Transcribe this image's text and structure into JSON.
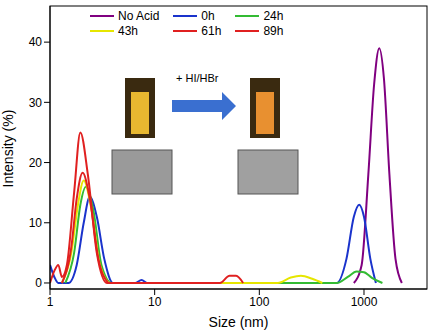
{
  "chart_data": {
    "type": "line",
    "x_label": "Size (nm)",
    "y_label": "Intensity (%)",
    "log": "x",
    "xlim": [
      1,
      4000
    ],
    "xticks": [
      1,
      10,
      100,
      1000
    ],
    "ylim": [
      -1,
      46
    ],
    "yticks": [
      0,
      10,
      20,
      30,
      40
    ],
    "legend": "top",
    "annotations": [
      "+ HI/HBr"
    ],
    "series": [
      {
        "name": "No Acid",
        "color": "#800080",
        "x": [
          800,
          950,
          1100,
          1250,
          1400,
          1550,
          1750,
          2000,
          2300
        ],
        "values": [
          0,
          3,
          18,
          33,
          39,
          34,
          18,
          4,
          0
        ]
      },
      {
        "name": "0h",
        "color": "#1a33cc",
        "x": [
          1,
          1.1,
          1.2,
          1.5,
          1.8,
          2.1,
          2.4,
          2.8,
          3.3,
          4,
          6.5,
          7.5,
          8.5,
          550,
          680,
          800,
          900,
          1000,
          1150,
          1300
        ],
        "values": [
          3,
          1,
          0,
          0,
          3,
          10,
          14.3,
          11,
          4,
          0,
          0,
          0.5,
          0,
          0,
          4,
          11,
          13,
          11,
          4,
          0
        ]
      },
      {
        "name": "24h",
        "color": "#33bb33",
        "x": [
          1.4,
          1.7,
          1.95,
          2.2,
          2.6,
          3.1,
          3.9,
          550,
          700,
          850,
          1000,
          1200,
          1500
        ],
        "values": [
          0,
          5,
          13,
          16,
          12,
          3,
          0,
          0,
          1,
          1.9,
          1.8,
          0.8,
          0
        ]
      },
      {
        "name": "43h",
        "color": "#e6e600",
        "x": [
          1.3,
          1.6,
          1.85,
          2.1,
          2.5,
          3,
          3.8,
          150,
          200,
          250,
          320,
          400
        ],
        "values": [
          0,
          5,
          13,
          17,
          12,
          3,
          0,
          0,
          0.9,
          1.2,
          0.7,
          0
        ]
      },
      {
        "name": "61h",
        "color": "#e02020",
        "x": [
          1.3,
          1.6,
          1.8,
          2.05,
          2.4,
          2.9,
          3.6
        ],
        "values": [
          0,
          6,
          14,
          18.3,
          14,
          4,
          0
        ]
      },
      {
        "name": "89h",
        "color": "#e02020",
        "x": [
          1,
          1.1,
          1.2,
          1.3,
          1.45,
          1.7,
          1.95,
          2.3,
          2.8,
          3.5,
          42,
          52,
          60,
          70
        ],
        "values": [
          0,
          2,
          3,
          1,
          3,
          15,
          25,
          18,
          5,
          0,
          0,
          1.2,
          1.2,
          0
        ]
      }
    ]
  }
}
